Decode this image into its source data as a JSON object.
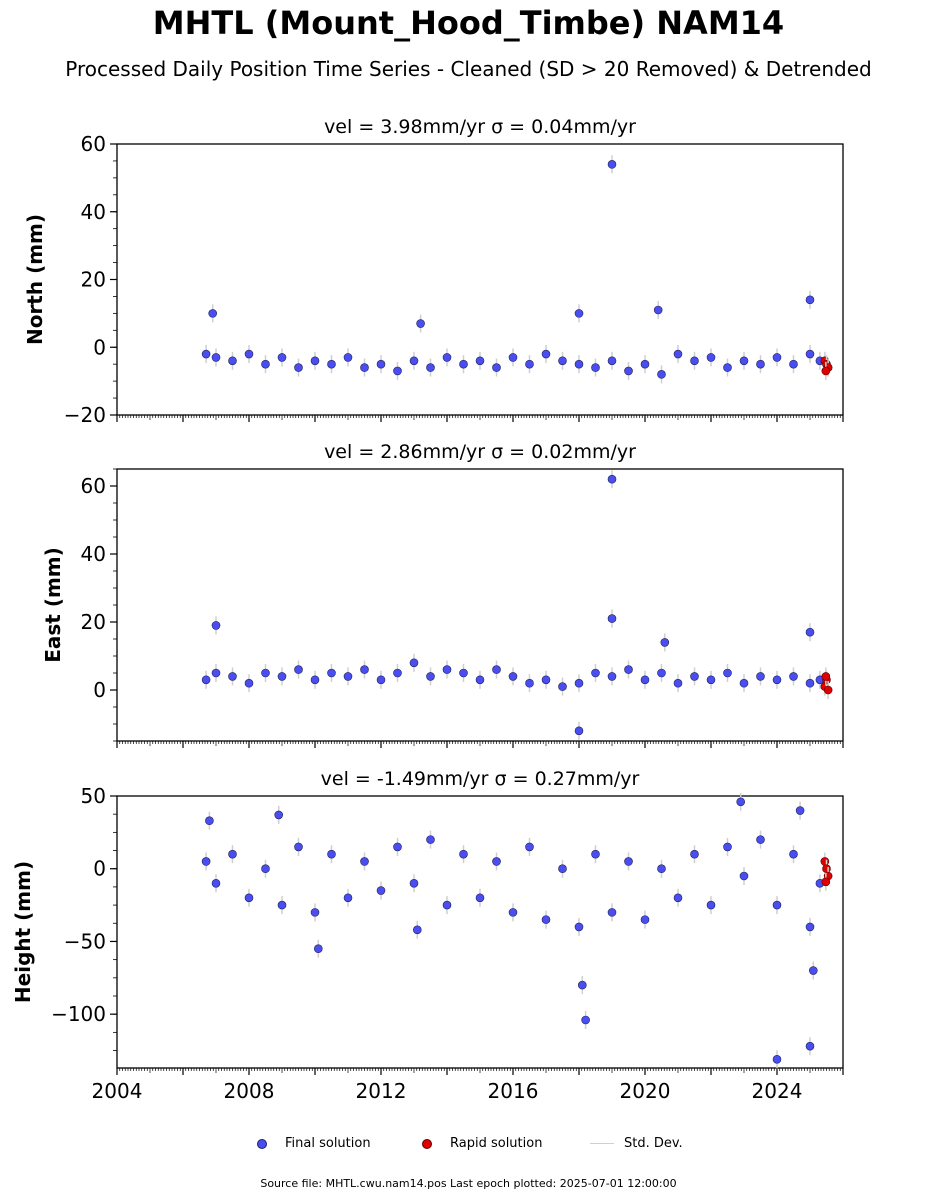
{
  "title": "MHTL (Mount_Hood_Timbe) NAM14",
  "subtitle": "Processed Daily Position Time Series - Cleaned (SD > 20 Removed) & Detrended",
  "chart_data": [
    {
      "type": "scatter",
      "panel_title": "vel = 3.98mm/yr   σ = 0.04mm/yr",
      "ylabel": "North (mm)",
      "xlim": [
        2004,
        2026
      ],
      "ylim": [
        -20,
        60
      ],
      "yticks": [
        -20,
        0,
        20,
        40,
        60
      ],
      "ytick_labels": [
        "−20",
        "0",
        "20",
        "40",
        "60"
      ],
      "series": [
        {
          "name": "Final solution",
          "x": [
            2006.7,
            2007.0,
            2007.5,
            2008.0,
            2008.5,
            2009.0,
            2009.5,
            2010.0,
            2010.5,
            2011.0,
            2011.5,
            2012.0,
            2012.5,
            2013.0,
            2013.5,
            2014.0,
            2014.5,
            2015.0,
            2015.5,
            2016.0,
            2016.5,
            2017.0,
            2017.5,
            2018.0,
            2018.5,
            2019.0,
            2019.5,
            2020.0,
            2020.5,
            2021.0,
            2021.5,
            2022.0,
            2022.5,
            2023.0,
            2023.5,
            2024.0,
            2024.5,
            2025.0,
            2025.3,
            2018.0,
            2019.0,
            2020.4,
            2025.0,
            2006.9,
            2013.2
          ],
          "y": [
            -2,
            -3,
            -4,
            -2,
            -5,
            -3,
            -6,
            -4,
            -5,
            -3,
            -6,
            -5,
            -7,
            -4,
            -6,
            -3,
            -5,
            -4,
            -6,
            -3,
            -5,
            -2,
            -4,
            -5,
            -6,
            -4,
            -7,
            -5,
            -8,
            -2,
            -4,
            -3,
            -6,
            -4,
            -5,
            -3,
            -5,
            -2,
            -4,
            10,
            54,
            11,
            14,
            10,
            7
          ]
        },
        {
          "name": "Rapid solution",
          "x": [
            2025.45,
            2025.5,
            2025.55,
            2025.48
          ],
          "y": [
            -4,
            -5,
            -6,
            -7
          ]
        }
      ]
    },
    {
      "type": "scatter",
      "panel_title": "vel = 2.86mm/yr   σ = 0.02mm/yr",
      "ylabel": "East (mm)",
      "xlim": [
        2004,
        2026
      ],
      "ylim": [
        -15,
        65
      ],
      "yticks": [
        0,
        20,
        40,
        60
      ],
      "ytick_labels": [
        "0",
        "20",
        "40",
        "60"
      ],
      "series": [
        {
          "name": "Final solution",
          "x": [
            2006.7,
            2007.0,
            2007.5,
            2008.0,
            2008.5,
            2009.0,
            2009.5,
            2010.0,
            2010.5,
            2011.0,
            2011.5,
            2012.0,
            2012.5,
            2013.0,
            2013.5,
            2014.0,
            2014.5,
            2015.0,
            2015.5,
            2016.0,
            2016.5,
            2017.0,
            2017.5,
            2018.0,
            2018.5,
            2019.0,
            2019.5,
            2020.0,
            2020.5,
            2021.0,
            2021.5,
            2022.0,
            2022.5,
            2023.0,
            2023.5,
            2024.0,
            2024.5,
            2025.0,
            2025.3,
            2007.0,
            2019.0,
            2019.0,
            2018.0,
            2020.6,
            2025.0
          ],
          "y": [
            3,
            5,
            4,
            2,
            5,
            4,
            6,
            3,
            5,
            4,
            6,
            3,
            5,
            8,
            4,
            6,
            5,
            3,
            6,
            4,
            2,
            3,
            1,
            2,
            5,
            4,
            6,
            3,
            5,
            2,
            4,
            3,
            5,
            2,
            4,
            3,
            4,
            2,
            3,
            19,
            62,
            21,
            -12,
            14,
            17
          ]
        },
        {
          "name": "Rapid solution",
          "x": [
            2025.45,
            2025.5,
            2025.55,
            2025.48
          ],
          "y": [
            1,
            3,
            0,
            4
          ]
        }
      ]
    },
    {
      "type": "scatter",
      "panel_title": "vel = -1.49mm/yr   σ = 0.27mm/yr",
      "ylabel": "Height (mm)",
      "xlim": [
        2004,
        2026
      ],
      "ylim": [
        -137,
        50
      ],
      "yticks": [
        -100,
        -50,
        0,
        50
      ],
      "ytick_labels": [
        "−100",
        "−50",
        "0",
        "50"
      ],
      "xticks": [
        2004,
        2008,
        2012,
        2016,
        2020,
        2024
      ],
      "series": [
        {
          "name": "Final solution",
          "x": [
            2006.7,
            2007.0,
            2007.5,
            2008.0,
            2008.5,
            2009.0,
            2009.5,
            2010.0,
            2010.5,
            2011.0,
            2011.5,
            2012.0,
            2012.5,
            2013.0,
            2013.5,
            2014.0,
            2014.5,
            2015.0,
            2015.5,
            2016.0,
            2016.5,
            2017.0,
            2017.5,
            2018.0,
            2018.5,
            2019.0,
            2019.5,
            2020.0,
            2020.5,
            2021.0,
            2021.5,
            2022.0,
            2022.5,
            2023.0,
            2023.5,
            2024.0,
            2024.5,
            2025.0,
            2025.3,
            2006.8,
            2008.9,
            2010.1,
            2013.1,
            2018.1,
            2018.2,
            2022.9,
            2024.0,
            2025.0,
            2025.1,
            2024.7
          ],
          "y": [
            5,
            -10,
            10,
            -20,
            0,
            -25,
            15,
            -30,
            10,
            -20,
            5,
            -15,
            15,
            -10,
            20,
            -25,
            10,
            -20,
            5,
            -30,
            15,
            -35,
            0,
            -40,
            10,
            -30,
            5,
            -35,
            0,
            -20,
            10,
            -25,
            15,
            -5,
            20,
            -25,
            10,
            -40,
            -10,
            33,
            37,
            -55,
            -42,
            -80,
            -104,
            46,
            -131,
            -122,
            -70,
            40
          ]
        },
        {
          "name": "Rapid solution",
          "x": [
            2025.45,
            2025.5,
            2025.55,
            2025.48
          ],
          "y": [
            5,
            0,
            -5,
            -9
          ]
        }
      ]
    }
  ],
  "legend": {
    "final_label": "Final solution",
    "rapid_label": "Rapid solution",
    "std_label": "Std. Dev."
  },
  "colors": {
    "final": "#4a4ef0",
    "rapid": "#e00000",
    "std": "#cfcfcf"
  },
  "footnote": "Source file: MHTL.cwu.nam14.pos  Last epoch plotted: 2025-07-01 12:00:00"
}
